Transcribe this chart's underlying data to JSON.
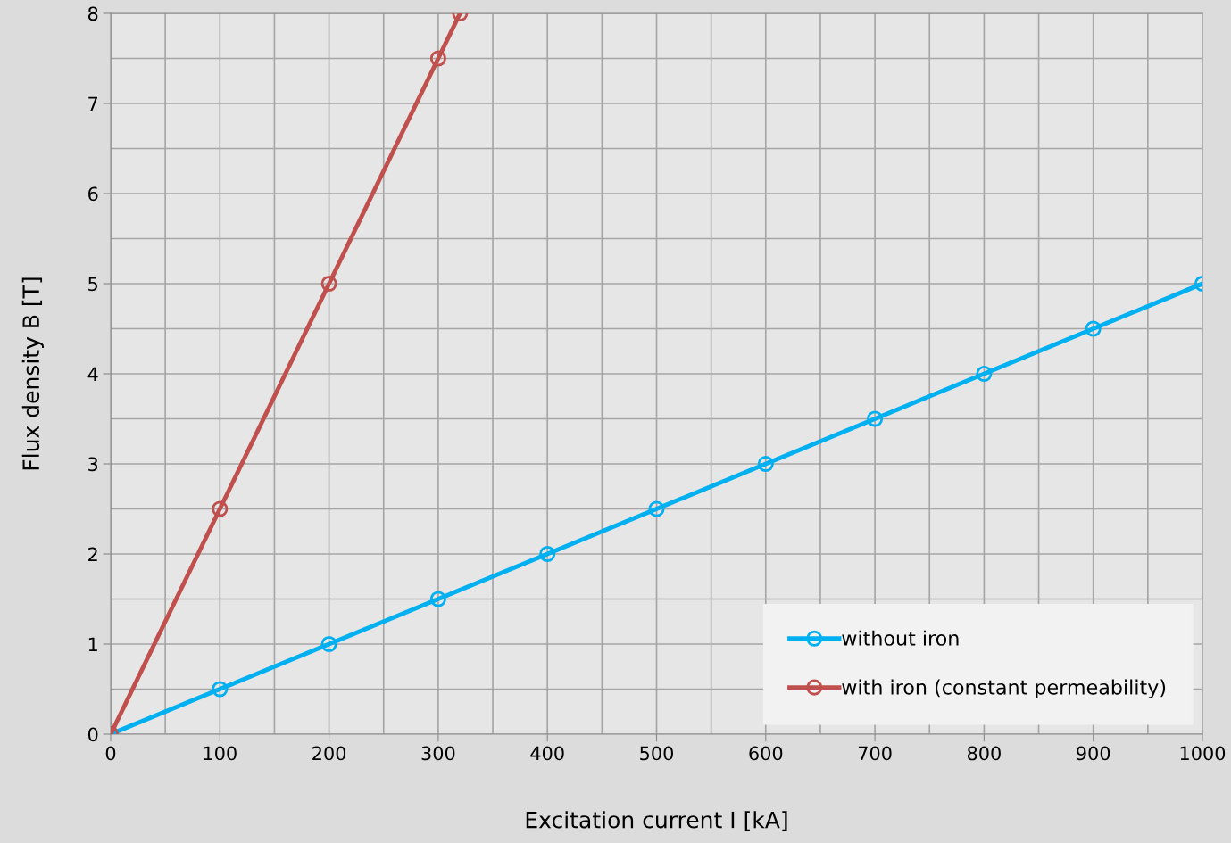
{
  "chart_data": {
    "type": "line",
    "xlabel": "Excitation current I [kA]",
    "ylabel": "Flux density B [T]",
    "xlim": [
      0,
      1000
    ],
    "xticks": [
      0,
      100,
      200,
      300,
      400,
      500,
      600,
      700,
      800,
      900,
      1000
    ],
    "ylim": [
      0,
      8
    ],
    "yticks": [
      0,
      1,
      2,
      3,
      4,
      5,
      6,
      7,
      8
    ],
    "grid": true,
    "legend": "bottom right",
    "marker": "circle",
    "line_style": "solid",
    "series": [
      {
        "name": "without iron",
        "color": "#00b0f0",
        "x": [
          0,
          100,
          200,
          300,
          400,
          500,
          600,
          700,
          800,
          900,
          1000
        ],
        "values": [
          0,
          0.5,
          1,
          1.5,
          2,
          2.5,
          3,
          3.5,
          4,
          4.5,
          5
        ]
      },
      {
        "name": "with iron (constant permeability)",
        "color": "#c0504d",
        "x": [
          0,
          100,
          200,
          300,
          320
        ],
        "values": [
          0,
          2.5,
          5,
          7.5,
          8
        ]
      }
    ]
  }
}
